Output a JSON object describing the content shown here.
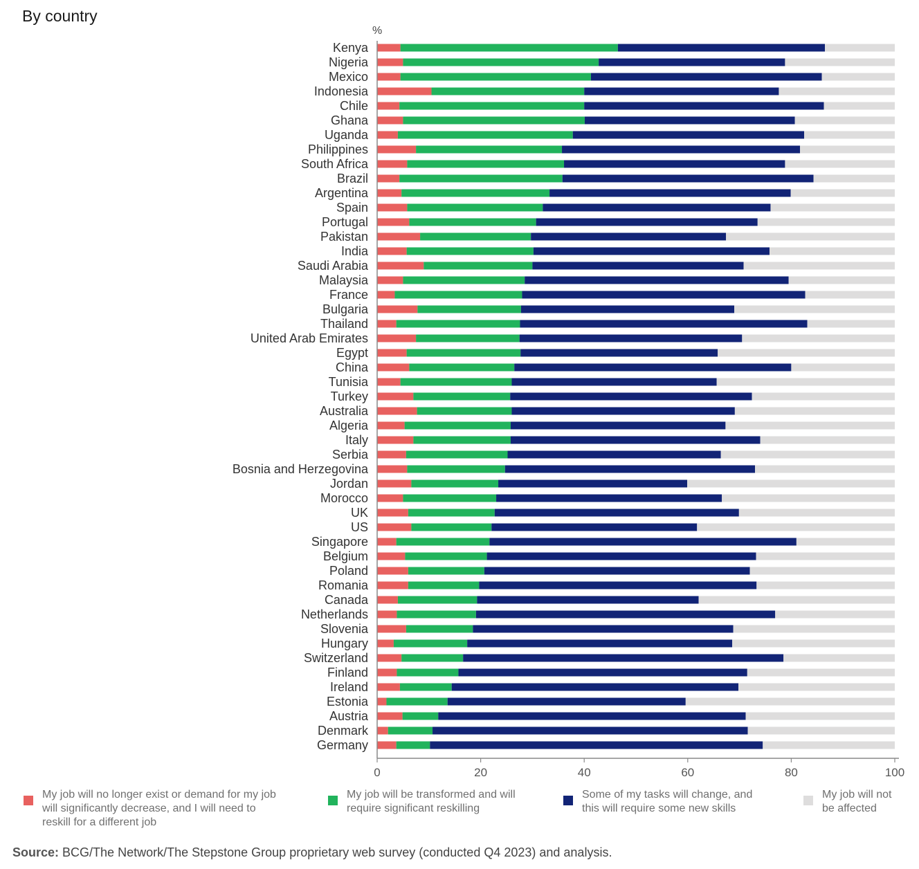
{
  "title": "By country",
  "source": {
    "label": "Source:",
    "text": "BCG/The Network/The Stepstone Group proprietary web survey (conducted Q4 2023) and analysis."
  },
  "chart_data": {
    "type": "bar",
    "orientation": "horizontal",
    "stacked": true,
    "unit_label": "%",
    "xlim": [
      0,
      100
    ],
    "xticks": [
      0,
      20,
      40,
      60,
      80,
      100
    ],
    "categories": [
      "Kenya",
      "Nigeria",
      "Mexico",
      "Indonesia",
      "Chile",
      "Ghana",
      "Uganda",
      "Philippines",
      "South Africa",
      "Brazil",
      "Argentina",
      "Spain",
      "Portugal",
      "Pakistan",
      "India",
      "Saudi Arabia",
      "Malaysia",
      "France",
      "Bulgaria",
      "Thailand",
      "United Arab Emirates",
      "Egypt",
      "China",
      "Tunisia",
      "Turkey",
      "Australia",
      "Algeria",
      "Italy",
      "Serbia",
      "Bosnia and Herzegovina",
      "Jordan",
      "Morocco",
      "UK",
      "US",
      "Singapore",
      "Belgium",
      "Poland",
      "Romania",
      "Canada",
      "Netherlands",
      "Slovenia",
      "Hungary",
      "Switzerland",
      "Finland",
      "Ireland",
      "Estonia",
      "Austria",
      "Denmark",
      "Germany"
    ],
    "series": [
      {
        "name": "My job will no longer exist or demand for my job will significantly decrease, and I will need to reskill for a different job",
        "color": "#e8615f",
        "values": [
          4.5,
          5,
          4.5,
          10.5,
          4.3,
          5,
          4,
          7.5,
          5.8,
          4.3,
          4.7,
          5.8,
          6.2,
          8.3,
          5.7,
          9,
          5,
          3.4,
          7.8,
          3.7,
          7.5,
          5.7,
          6.2,
          4.5,
          7,
          7.7,
          5.3,
          7,
          5.6,
          5.8,
          6.6,
          5,
          6,
          6.6,
          3.7,
          5.4,
          6,
          6,
          4,
          3.8,
          5.6,
          3.2,
          4.7,
          3.8,
          4.4,
          1.8,
          4.9,
          2.1,
          3.7
        ]
      },
      {
        "name": "My job will be transformed and will require significant reskilling",
        "color": "#21b35c",
        "values": [
          42,
          37.8,
          36.8,
          29.5,
          35.7,
          35.1,
          33.8,
          28.2,
          30.3,
          31.5,
          28.6,
          26.2,
          24.5,
          21.4,
          24.5,
          21,
          23.5,
          24.6,
          20,
          23.9,
          20,
          22,
          20.3,
          21.5,
          18.7,
          18.3,
          20.5,
          18.8,
          19.6,
          18.9,
          16.8,
          18,
          16.7,
          15.5,
          18,
          15.8,
          14.7,
          13.7,
          15.3,
          15.3,
          12.9,
          14.2,
          11.9,
          11.9,
          10,
          11.8,
          6.9,
          8.6,
          6.5
        ]
      },
      {
        "name": "Some of my tasks will change, and this will require some new skills",
        "color": "#122476",
        "values": [
          40,
          36,
          44.6,
          37.6,
          46.3,
          40.6,
          44.7,
          46,
          42.7,
          48.5,
          46.6,
          44,
          42.8,
          37.7,
          45.6,
          40.8,
          51,
          54.7,
          41.2,
          55.5,
          43,
          38.1,
          53.5,
          39.6,
          46.7,
          43.1,
          41.5,
          48.2,
          41.2,
          48.3,
          36.5,
          43.6,
          47.2,
          39.7,
          59.3,
          52,
          51.3,
          53.6,
          42.8,
          57.8,
          50.3,
          51.2,
          61.9,
          55.8,
          55.4,
          46,
          59.4,
          60.9,
          64.3
        ]
      },
      {
        "name": "My job will not be affected",
        "color": "#dedddd",
        "values": [
          13.5,
          21.2,
          14.1,
          22.4,
          13.7,
          19.3,
          17.5,
          18.3,
          21.2,
          15.7,
          20.1,
          24,
          26.5,
          32.6,
          24.2,
          29.2,
          20.5,
          17.3,
          31,
          16.9,
          29.5,
          34.2,
          20,
          34.4,
          27.6,
          30.9,
          32.7,
          26,
          33.6,
          27,
          40.1,
          33.4,
          30.1,
          38.2,
          19,
          26.8,
          28,
          26.7,
          37.9,
          23.1,
          31.2,
          31.4,
          21.5,
          28.5,
          30.2,
          40.4,
          28.8,
          28.4,
          25.5
        ]
      }
    ]
  }
}
